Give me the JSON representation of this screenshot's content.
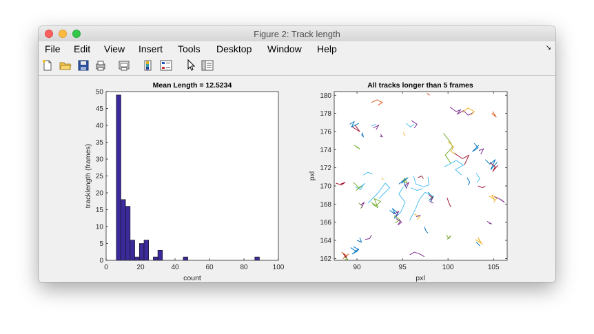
{
  "window": {
    "title": "Figure 2: Track length"
  },
  "menu": [
    "File",
    "Edit",
    "View",
    "Insert",
    "Tools",
    "Desktop",
    "Window",
    "Help"
  ],
  "toolbar": {
    "icons": [
      "new-figure-icon",
      "open-file-icon",
      "save-icon",
      "print-icon",
      "print-preview-icon",
      "colorbar-icon",
      "legend-icon",
      "pointer-icon",
      "property-inspector-icon"
    ]
  },
  "chart_data": [
    {
      "type": "bar",
      "title": "Mean Length = 12.5234",
      "xlabel": "count",
      "ylabel": "tracklength (frames)",
      "xlim": [
        0,
        100
      ],
      "ylim": [
        0,
        50
      ],
      "xticks": [
        "0",
        "20",
        "40",
        "60",
        "80",
        "100"
      ],
      "yticks": [
        "0",
        "5",
        "10",
        "15",
        "20",
        "25",
        "30",
        "35",
        "40",
        "45",
        "50"
      ],
      "bin_width": 2.68,
      "bin_centers": [
        7.25,
        9.93,
        12.61,
        15.29,
        17.97,
        20.65,
        23.33,
        26.01,
        28.69,
        31.37,
        46.11,
        87.65
      ],
      "values": [
        49,
        18,
        16,
        6,
        1,
        5,
        6,
        0,
        1,
        3,
        1,
        1
      ],
      "color": "#3a2a9a"
    },
    {
      "type": "line",
      "title": "All tracks longer than 5 frames",
      "xlabel": "pxl",
      "ylabel": "pxl",
      "xlim": [
        87.5,
        106.5
      ],
      "ylim": [
        161.8,
        180.4
      ],
      "xticks": [
        "90",
        "95",
        "100",
        "105"
      ],
      "yticks": [
        "162",
        "164",
        "166",
        "168",
        "170",
        "172",
        "174",
        "176",
        "178",
        "180"
      ],
      "colors": [
        "#0072bd",
        "#d95319",
        "#edb120",
        "#7e2f8e",
        "#77ac30",
        "#4dbeee",
        "#a2142f"
      ],
      "series": [
        {
          "color": "#d95319",
          "x": [
            91.6,
            92.2,
            92.8,
            92.3
          ],
          "y": [
            179.2,
            179.5,
            179.2,
            178.9
          ]
        },
        {
          "color": "#d95319",
          "x": [
            97.7,
            98.0
          ],
          "y": [
            180.2,
            180.0
          ]
        },
        {
          "color": "#7e2f8e",
          "x": [
            100.2,
            100.9,
            101.4,
            101.0,
            101.7,
            102.2,
            102.8
          ],
          "y": [
            178.7,
            178.2,
            178.4,
            177.9,
            178.3,
            177.8,
            178.1
          ]
        },
        {
          "color": "#edb120",
          "x": [
            101.6,
            102.2,
            102.9,
            102.5
          ],
          "y": [
            178.1,
            178.6,
            178.2,
            177.8
          ]
        },
        {
          "color": "#d95319",
          "x": [
            104.8,
            105.3,
            104.9
          ],
          "y": [
            178.0,
            177.6,
            178.2
          ]
        },
        {
          "color": "#0072bd",
          "x": [
            89.2,
            89.7,
            89.4,
            90.2
          ],
          "y": [
            176.8,
            177.1,
            176.5,
            176.9
          ]
        },
        {
          "color": "#a2142f",
          "x": [
            89.5,
            90.3,
            89.8
          ],
          "y": [
            176.5,
            176.0,
            176.7
          ]
        },
        {
          "color": "#0072bd",
          "x": [
            90.6,
            90.7,
            90.5
          ],
          "y": [
            175.9,
            175.4,
            175.7
          ]
        },
        {
          "color": "#7e2f8e",
          "x": [
            91.8,
            92.4,
            92.1
          ],
          "y": [
            176.4,
            176.7,
            176.2
          ]
        },
        {
          "color": "#4dbeee",
          "x": [
            91.6,
            92.1
          ],
          "y": [
            176.6,
            176.8
          ]
        },
        {
          "color": "#7e2f8e",
          "x": [
            92.6,
            92.8,
            92.5
          ],
          "y": [
            175.7,
            175.4,
            175.5
          ]
        },
        {
          "color": "#edb120",
          "x": [
            95.1,
            95.3
          ],
          "y": [
            175.9,
            175.5
          ]
        },
        {
          "color": "#4dbeee",
          "x": [
            95.4,
            95.9,
            96.3
          ],
          "y": [
            176.9,
            176.5,
            176.8
          ]
        },
        {
          "color": "#7e2f8e",
          "x": [
            96.0,
            96.6,
            96.3
          ],
          "y": [
            177.2,
            176.8,
            176.4
          ]
        },
        {
          "color": "#77ac30",
          "x": [
            89.7,
            90.3,
            89.9
          ],
          "y": [
            174.5,
            174.1,
            174.3
          ]
        },
        {
          "color": "#77ac30",
          "x": [
            99.5,
            100.2,
            100.5,
            99.7,
            100.3
          ],
          "y": [
            175.8,
            174.9,
            174.3,
            173.4,
            172.5
          ]
        },
        {
          "color": "#edb120",
          "x": [
            100.0,
            100.6,
            100.3,
            100.9
          ],
          "y": [
            174.9,
            174.3,
            173.8,
            173.5
          ]
        },
        {
          "color": "#4dbeee",
          "x": [
            99.6,
            100.9,
            101.7,
            100.8,
            101.5
          ],
          "y": [
            172.1,
            172.8,
            172.3,
            171.8,
            171.2
          ]
        },
        {
          "color": "#a2142f",
          "x": [
            100.7,
            101.6,
            102.3,
            101.8
          ],
          "y": [
            173.6,
            173.0,
            173.4,
            172.3
          ]
        },
        {
          "color": "#0072bd",
          "x": [
            102.9,
            103.3,
            102.7,
            103.4
          ],
          "y": [
            174.7,
            174.2,
            173.8,
            174.5
          ]
        },
        {
          "color": "#7e2f8e",
          "x": [
            103.4,
            103.9,
            103.6
          ],
          "y": [
            173.9,
            174.1,
            173.5
          ]
        },
        {
          "color": "#0072bd",
          "x": [
            104.1,
            104.6,
            105.2,
            104.7,
            105.4
          ],
          "y": [
            172.9,
            172.4,
            172.9,
            171.8,
            172.6
          ]
        },
        {
          "color": "#a2142f",
          "x": [
            104.6,
            105.2,
            104.9,
            105.5
          ],
          "y": [
            172.6,
            172.1,
            171.6,
            172.3
          ]
        },
        {
          "color": "#0072bd",
          "x": [
            102.1,
            102.4,
            102.2
          ],
          "y": [
            170.9,
            170.4,
            170.1
          ]
        },
        {
          "color": "#4dbeee",
          "x": [
            103.1,
            103.5,
            103.2
          ],
          "y": [
            171.4,
            170.8,
            170.4
          ]
        },
        {
          "color": "#a2142f",
          "x": [
            103.3,
            103.8,
            104.1
          ],
          "y": [
            170.0,
            169.8,
            170.0
          ]
        },
        {
          "color": "#edb120",
          "x": [
            104.5,
            105.1,
            104.8,
            105.4,
            105.0
          ],
          "y": [
            168.9,
            168.5,
            169.0,
            168.7,
            168.2
          ]
        },
        {
          "color": "#7e2f8e",
          "x": [
            105.1,
            105.6,
            106.2,
            105.8
          ],
          "y": [
            168.8,
            168.6,
            168.2,
            168.5
          ]
        },
        {
          "color": "#a2142f",
          "x": [
            99.9,
            100.1,
            100.3
          ],
          "y": [
            168.7,
            168.1,
            167.7
          ]
        },
        {
          "color": "#a2142f",
          "x": [
            87.7,
            88.3,
            88.7,
            88.2
          ],
          "y": [
            170.3,
            170.1,
            170.4,
            170.2
          ]
        },
        {
          "color": "#4dbeee",
          "x": [
            90.7,
            91.2,
            91.7
          ],
          "y": [
            171.2,
            171.5,
            171.3
          ]
        },
        {
          "color": "#4dbeee",
          "x": [
            89.8,
            90.4,
            90.7,
            90.2,
            90.9
          ],
          "y": [
            169.9,
            169.6,
            170.1,
            169.7,
            170.3
          ]
        },
        {
          "color": "#77ac30",
          "x": [
            89.6,
            90.2,
            90.5,
            89.9
          ],
          "y": [
            170.4,
            169.8,
            170.0,
            169.5
          ]
        },
        {
          "color": "#edb120",
          "x": [
            92.7,
            92.9
          ],
          "y": [
            170.9,
            170.7
          ]
        },
        {
          "color": "#4dbeee",
          "x": [
            91.2,
            92.3,
            93.1,
            93.6,
            92.4
          ],
          "y": [
            168.1,
            169.2,
            170.3,
            169.8,
            168.6
          ]
        },
        {
          "color": "#77ac30",
          "x": [
            91.6,
            92.1,
            92.6,
            91.9,
            92.3,
            91.7
          ],
          "y": [
            168.2,
            167.8,
            168.3,
            168.6,
            167.6,
            168.0
          ]
        },
        {
          "color": "#77ac30",
          "x": [
            90.2,
            90.6,
            90.4
          ],
          "y": [
            168.1,
            167.8,
            167.5
          ]
        },
        {
          "color": "#7e2f8e",
          "x": [
            90.4,
            90.8,
            90.5
          ],
          "y": [
            167.9,
            168.2,
            167.6
          ]
        },
        {
          "color": "#4dbeee",
          "x": [
            94.1,
            94.8,
            95.3,
            94.6,
            95.1
          ],
          "y": [
            166.4,
            167.1,
            168.2,
            169.1,
            169.9
          ]
        },
        {
          "color": "#0072bd",
          "x": [
            94.6,
            95.3,
            94.9,
            95.6,
            95.1,
            95.4
          ],
          "y": [
            170.2,
            170.8,
            170.3,
            170.9,
            170.6,
            169.8
          ]
        },
        {
          "color": "#77ac30",
          "x": [
            95.0,
            95.5,
            95.2
          ],
          "y": [
            170.6,
            170.3,
            170.9
          ]
        },
        {
          "color": "#7e2f8e",
          "x": [
            95.2,
            95.7,
            95.4
          ],
          "y": [
            170.0,
            170.4,
            169.7
          ]
        },
        {
          "color": "#4dbeee",
          "x": [
            96.2,
            96.5,
            97.3,
            97.9,
            97.8
          ],
          "y": [
            171.1,
            170.2,
            169.9,
            170.1,
            171.0
          ]
        },
        {
          "color": "#4dbeee",
          "x": [
            95.9,
            96.6,
            97.2
          ],
          "y": [
            169.8,
            169.5,
            169.7
          ]
        },
        {
          "color": "#a2142f",
          "x": [
            96.7,
            97.1,
            97.3
          ],
          "y": [
            170.9,
            171.1,
            170.8
          ]
        },
        {
          "color": "#4dbeee",
          "x": [
            95.8,
            96.4,
            96.9,
            97.5,
            98.0
          ],
          "y": [
            166.2,
            167.4,
            168.6,
            169.3,
            169.0
          ]
        },
        {
          "color": "#0072bd",
          "x": [
            97.8,
            98.3,
            97.9,
            98.4,
            98.1
          ],
          "y": [
            169.3,
            168.8,
            168.4,
            168.9,
            168.2
          ]
        },
        {
          "color": "#a2142f",
          "x": [
            97.9,
            98.3,
            98.1
          ],
          "y": [
            169.0,
            168.7,
            168.4
          ]
        },
        {
          "color": "#7e2f8e",
          "x": [
            98.0,
            98.4
          ],
          "y": [
            168.3,
            168.1
          ]
        },
        {
          "color": "#0072bd",
          "x": [
            93.6,
            94.2,
            93.9,
            94.5,
            94.1
          ],
          "y": [
            167.3,
            166.9,
            167.5,
            167.0,
            166.5
          ]
        },
        {
          "color": "#7e2f8e",
          "x": [
            94.0,
            94.6,
            94.3
          ],
          "y": [
            166.9,
            167.2,
            166.6
          ]
        },
        {
          "color": "#77ac30",
          "x": [
            94.1,
            94.7,
            94.2
          ],
          "y": [
            166.7,
            166.3,
            165.9
          ]
        },
        {
          "color": "#7e2f8e",
          "x": [
            94.3,
            94.9,
            94.5,
            94.8
          ],
          "y": [
            166.4,
            166.0,
            165.7,
            166.2
          ]
        },
        {
          "color": "#edb120",
          "x": [
            96.3,
            96.9,
            96.6
          ],
          "y": [
            166.9,
            166.6,
            166.3
          ]
        },
        {
          "color": "#7e2f8e",
          "x": [
            96.5,
            97.0
          ],
          "y": [
            166.6,
            166.8
          ]
        },
        {
          "color": "#0072bd",
          "x": [
            97.4,
            97.6,
            97.8
          ],
          "y": [
            165.5,
            165.0,
            164.8
          ]
        },
        {
          "color": "#77ac30",
          "x": [
            99.8,
            100.1,
            100.3,
            99.9
          ],
          "y": [
            164.6,
            164.2,
            164.5,
            164.1
          ]
        },
        {
          "color": "#7e2f8e",
          "x": [
            104.3,
            104.8,
            104.5
          ],
          "y": [
            166.1,
            165.8,
            165.9
          ]
        },
        {
          "color": "#edb120",
          "x": [
            103.0,
            103.6,
            103.3,
            103.8
          ],
          "y": [
            164.1,
            163.7,
            164.3,
            163.5
          ]
        },
        {
          "color": "#0072bd",
          "x": [
            103.1,
            103.5
          ],
          "y": [
            163.8,
            163.4
          ]
        },
        {
          "color": "#0072bd",
          "x": [
            89.3,
            89.9,
            89.5,
            90.1,
            89.7
          ],
          "y": [
            163.2,
            162.8,
            162.5,
            163.0,
            162.6
          ]
        },
        {
          "color": "#0072bd",
          "x": [
            89.6,
            90.2,
            89.9
          ],
          "y": [
            163.3,
            163.0,
            162.7
          ]
        },
        {
          "color": "#d95319",
          "x": [
            88.3,
            88.9,
            88.5,
            89.1
          ],
          "y": [
            162.7,
            162.3,
            162.0,
            162.5
          ]
        },
        {
          "color": "#a2142f",
          "x": [
            88.5,
            88.9,
            88.6
          ],
          "y": [
            162.5,
            162.1,
            162.3
          ]
        },
        {
          "color": "#77ac30",
          "x": [
            88.6,
            89.0,
            88.7
          ],
          "y": [
            162.2,
            161.9,
            161.9
          ]
        },
        {
          "color": "#0072bd",
          "x": [
            90.0,
            90.5,
            90.3
          ],
          "y": [
            164.0,
            163.8,
            164.3
          ]
        },
        {
          "color": "#7e2f8e",
          "x": [
            90.9,
            91.4,
            91.6
          ],
          "y": [
            164.1,
            164.2,
            164.6
          ]
        },
        {
          "color": "#7e2f8e",
          "x": [
            95.8,
            96.3,
            96.9,
            97.4
          ],
          "y": [
            162.4,
            162.7,
            162.5,
            162.2
          ]
        }
      ]
    }
  ]
}
